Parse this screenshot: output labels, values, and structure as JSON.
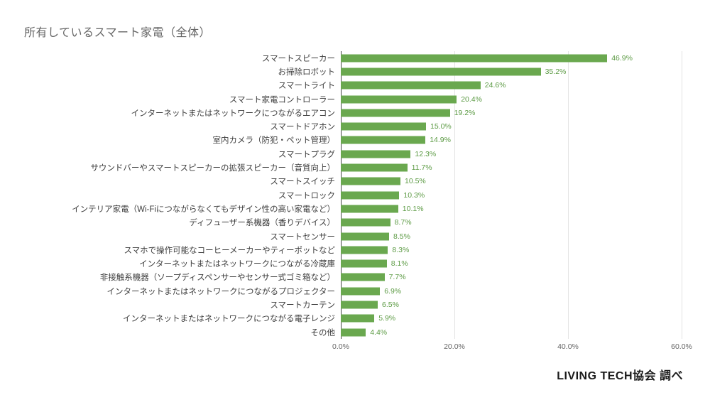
{
  "page": {
    "title": "所有しているスマート家電（全体）",
    "source": "LIVING TECH協会 調べ"
  },
  "chart_data": {
    "type": "bar",
    "orientation": "horizontal",
    "title": "所有しているスマート家電（全体）",
    "xlabel": "",
    "ylabel": "",
    "xlim": [
      0,
      60
    ],
    "x_ticks": [
      {
        "value": 0,
        "label": "0.0%"
      },
      {
        "value": 20,
        "label": "20.0%"
      },
      {
        "value": 40,
        "label": "40.0%"
      },
      {
        "value": 60,
        "label": "60.0%"
      }
    ],
    "grid": true,
    "legend": "none",
    "bar_color": "#6aa84f",
    "value_label_color": "#5d9b45",
    "categories": [
      "スマートスピーカー",
      "お掃除ロボット",
      "スマートライト",
      "スマート家電コントローラー",
      "インターネットまたはネットワークにつながるエアコン",
      "スマートドアホン",
      "室内カメラ（防犯・ペット管理）",
      "スマートプラグ",
      "サウンドバーやスマートスピーカーの拡張スピーカー（音質向上）",
      "スマートスイッチ",
      "スマートロック",
      "インテリア家電（Wi-Fiにつながらなくてもデザイン性の高い家電など）",
      "ディフューザー系機器（香りデバイス）",
      "スマートセンサー",
      "スマホで操作可能なコーヒーメーカーやティーポットなど",
      "インターネットまたはネットワークにつながる冷蔵庫",
      "非接触系機器（ソープディスペンサーやセンサー式ゴミ箱など）",
      "インターネットまたはネットワークにつながるプロジェクター",
      "スマートカーテン",
      "インターネットまたはネットワークにつながる電子レンジ",
      "その他"
    ],
    "values": [
      46.9,
      35.2,
      24.6,
      20.4,
      19.2,
      15.0,
      14.9,
      12.3,
      11.7,
      10.5,
      10.3,
      10.1,
      8.7,
      8.5,
      8.3,
      8.1,
      7.7,
      6.9,
      6.5,
      5.9,
      4.4
    ],
    "value_labels": [
      "46.9%",
      "35.2%",
      "24.6%",
      "20.4%",
      "19.2%",
      "15.0%",
      "14.9%",
      "12.3%",
      "11.7%",
      "10.5%",
      "10.3%",
      "10.1%",
      "8.7%",
      "8.5%",
      "8.3%",
      "8.1%",
      "7.7%",
      "6.9%",
      "6.5%",
      "5.9%",
      "4.4%"
    ]
  }
}
